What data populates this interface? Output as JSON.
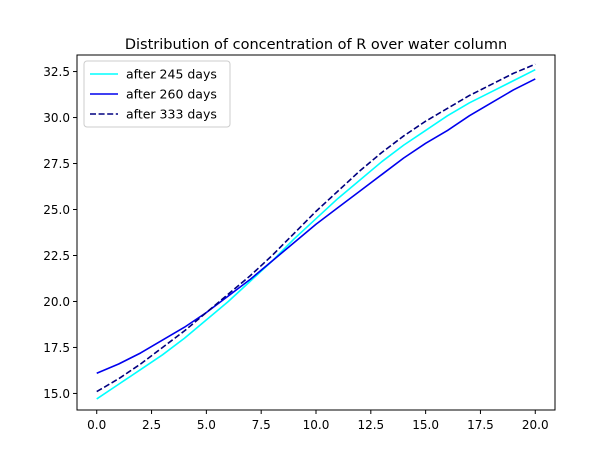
{
  "chart_data": {
    "type": "line",
    "title": "Distribution of concentration of R over water column",
    "xlabel": "",
    "ylabel": "",
    "xlim": [
      -0.9,
      20.9
    ],
    "ylim": [
      14.1,
      33.4
    ],
    "x_ticks": [
      0.0,
      2.5,
      5.0,
      7.5,
      10.0,
      12.5,
      15.0,
      17.5,
      20.0
    ],
    "y_ticks": [
      15.0,
      17.5,
      20.0,
      22.5,
      25.0,
      27.5,
      30.0,
      32.5
    ],
    "x_tick_labels": [
      "0.0",
      "2.5",
      "5.0",
      "7.5",
      "10.0",
      "12.5",
      "15.0",
      "17.5",
      "20.0"
    ],
    "y_tick_labels": [
      "15.0",
      "17.5",
      "20.0",
      "22.5",
      "25.0",
      "27.5",
      "30.0",
      "32.5"
    ],
    "grid": false,
    "legend_position": "top-left",
    "x": [
      0,
      1,
      2,
      3,
      4,
      5,
      6,
      7,
      8,
      9,
      10,
      11,
      12,
      13,
      14,
      15,
      16,
      17,
      18,
      19,
      20
    ],
    "series": [
      {
        "name": "after 245 days",
        "color": "#00ffff",
        "style": "solid",
        "values": [
          14.7,
          15.5,
          16.3,
          17.1,
          18.0,
          19.0,
          20.0,
          21.1,
          22.2,
          23.4,
          24.5,
          25.6,
          26.6,
          27.6,
          28.5,
          29.3,
          30.1,
          30.8,
          31.4,
          32.0,
          32.6
        ]
      },
      {
        "name": "after 260 days",
        "color": "#0000ee",
        "style": "solid",
        "values": [
          16.1,
          16.6,
          17.2,
          17.9,
          18.6,
          19.4,
          20.3,
          21.2,
          22.2,
          23.2,
          24.2,
          25.1,
          26.0,
          26.9,
          27.8,
          28.6,
          29.3,
          30.1,
          30.8,
          31.5,
          32.1
        ]
      },
      {
        "name": "after 333 days",
        "color": "#000080",
        "style": "dashed",
        "values": [
          15.1,
          15.8,
          16.6,
          17.5,
          18.4,
          19.4,
          20.4,
          21.4,
          22.5,
          23.7,
          24.9,
          26.0,
          27.1,
          28.1,
          29.0,
          29.8,
          30.5,
          31.2,
          31.8,
          32.4,
          32.9
        ]
      }
    ]
  }
}
